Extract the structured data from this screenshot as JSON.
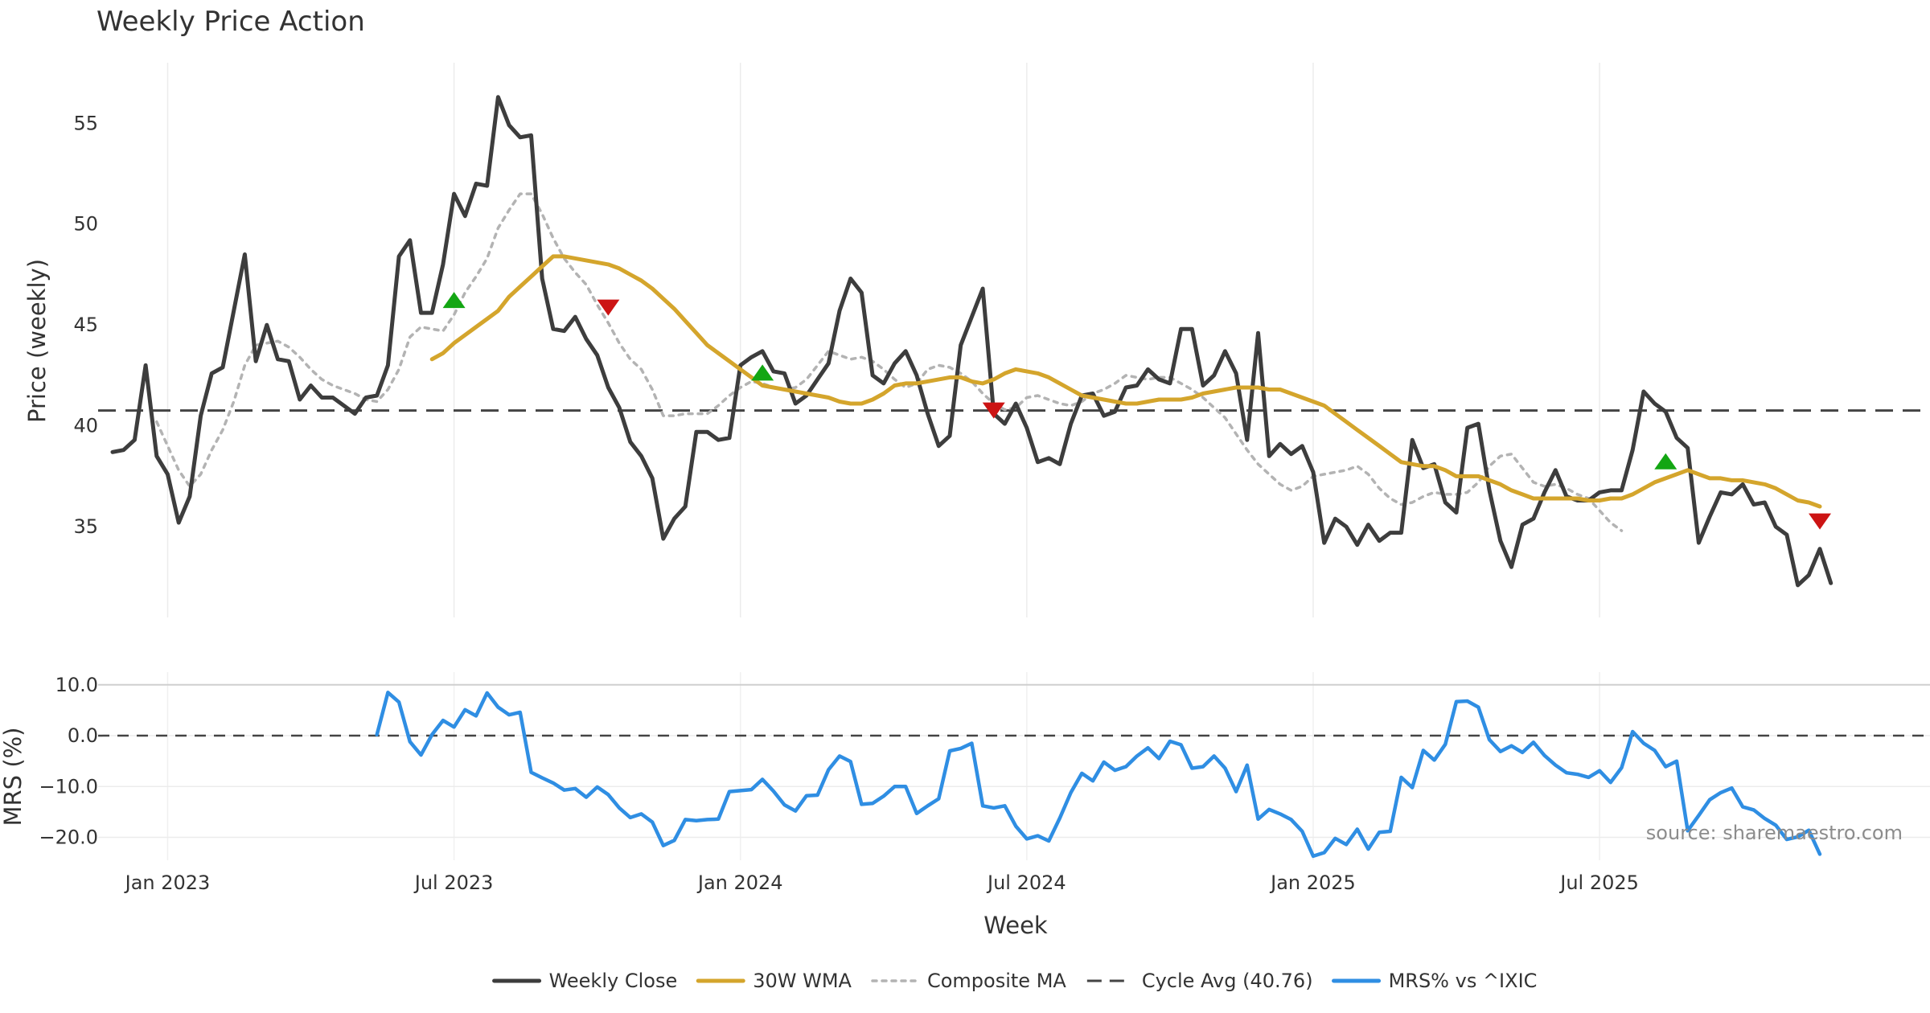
{
  "chart_data": {
    "type": "line",
    "title": "Weekly Price Action",
    "xlabel": "Week",
    "x_ticks": [
      {
        "label": "Jan 2023",
        "week": 5
      },
      {
        "label": "Jul 2023",
        "week": 31
      },
      {
        "label": "Jan 2024",
        "week": 57
      },
      {
        "label": "Jul 2024",
        "week": 83
      },
      {
        "label": "Jan 2025",
        "week": 109
      },
      {
        "label": "Jul 2025",
        "week": 135
      }
    ],
    "price_panel": {
      "ylabel": "Price (weekly)",
      "ylim": [
        30.5,
        58
      ],
      "yticks": [
        35,
        40,
        45,
        50,
        55
      ],
      "series": [
        {
          "name": "Weekly Close",
          "color": "#3d3d3d",
          "style": "solid",
          "values": [
            38.7,
            38.8,
            39.3,
            43.0,
            38.5,
            37.6,
            35.2,
            36.5,
            40.5,
            42.6,
            42.9,
            45.7,
            48.5,
            43.2,
            45.0,
            43.3,
            43.2,
            41.3,
            42.0,
            41.4,
            41.4,
            41.0,
            40.6,
            41.4,
            41.5,
            43.0,
            48.4,
            49.2,
            45.6,
            45.6,
            48.0,
            51.5,
            50.4,
            52.0,
            51.9,
            56.3,
            54.9,
            54.3,
            54.4,
            47.3,
            44.8,
            44.7,
            45.4,
            44.3,
            43.5,
            41.9,
            40.9,
            39.2,
            38.5,
            37.4,
            34.4,
            35.4,
            36.0,
            39.7,
            39.7,
            39.3,
            39.4,
            43.0,
            43.4,
            43.7,
            42.7,
            42.6,
            41.1,
            41.5,
            42.3,
            43.1,
            45.7,
            47.3,
            46.6,
            42.5,
            42.1,
            43.1,
            43.7,
            42.5,
            40.6,
            39.0,
            39.5,
            44.0,
            45.4,
            46.8,
            40.6,
            40.1,
            41.1,
            39.9,
            38.2,
            38.4,
            38.1,
            40.1,
            41.5,
            41.6,
            40.5,
            40.7,
            41.9,
            42.0,
            42.8,
            42.3,
            42.1,
            44.8,
            44.8,
            42.0,
            42.5,
            43.7,
            42.6,
            39.3,
            44.6,
            38.5,
            39.1,
            38.6,
            39.0,
            37.7,
            34.2,
            35.4,
            35.0,
            34.1,
            35.1,
            34.3,
            34.7,
            34.7,
            39.3,
            37.9,
            38.1,
            36.2,
            35.7,
            39.9,
            40.1,
            36.8,
            34.3,
            33.0,
            35.1,
            35.4,
            36.7,
            37.8,
            36.5,
            36.3,
            36.3,
            36.7,
            36.8,
            36.8,
            38.8,
            41.7,
            41.1,
            40.7,
            39.4,
            38.9,
            34.2,
            35.5,
            36.7,
            36.6,
            37.1,
            36.1,
            36.2,
            35.0,
            34.6,
            32.1,
            32.6,
            33.9,
            32.2
          ]
        },
        {
          "name": "30W WMA",
          "color": "#d4a52c",
          "style": "solid",
          "start_week": 29,
          "values": [
            43.3,
            43.6,
            44.1,
            44.5,
            44.9,
            45.3,
            45.7,
            46.4,
            46.9,
            47.4,
            47.9,
            48.4,
            48.4,
            48.3,
            48.2,
            48.1,
            48.0,
            47.8,
            47.5,
            47.2,
            46.8,
            46.3,
            45.8,
            45.2,
            44.6,
            44.0,
            43.6,
            43.2,
            42.8,
            42.4,
            42.0,
            41.9,
            41.8,
            41.7,
            41.6,
            41.5,
            41.4,
            41.2,
            41.1,
            41.1,
            41.3,
            41.6,
            42.0,
            42.1,
            42.1,
            42.2,
            42.3,
            42.4,
            42.4,
            42.2,
            42.1,
            42.3,
            42.6,
            42.8,
            42.7,
            42.6,
            42.4,
            42.1,
            41.8,
            41.5,
            41.4,
            41.3,
            41.2,
            41.1,
            41.1,
            41.2,
            41.3,
            41.3,
            41.3,
            41.4,
            41.6,
            41.7,
            41.8,
            41.9,
            41.9,
            41.9,
            41.8,
            41.8,
            41.6,
            41.4,
            41.2,
            41.0,
            40.6,
            40.2,
            39.8,
            39.4,
            39.0,
            38.6,
            38.2,
            38.1,
            38.0,
            38.0,
            37.8,
            37.5,
            37.5,
            37.5,
            37.3,
            37.1,
            36.8,
            36.6,
            36.4,
            36.4,
            36.4,
            36.4,
            36.4,
            36.3,
            36.3,
            36.4,
            36.4,
            36.6,
            36.9,
            37.2,
            37.4,
            37.6,
            37.8,
            37.6,
            37.4,
            37.4,
            37.3,
            37.3,
            37.2,
            37.1,
            36.9,
            36.6,
            36.3,
            36.2,
            36.0
          ]
        },
        {
          "name": "Composite MA",
          "color": "#b3b3b3",
          "style": "dotted",
          "start_week": 4,
          "values": [
            40.2,
            39.0,
            37.8,
            37.0,
            37.6,
            38.8,
            39.8,
            41.2,
            43.0,
            44.0,
            44.1,
            44.2,
            43.9,
            43.4,
            42.8,
            42.3,
            42.0,
            41.8,
            41.6,
            41.3,
            41.2,
            41.8,
            42.8,
            44.4,
            44.9,
            44.8,
            44.7,
            45.5,
            46.6,
            47.4,
            48.3,
            49.8,
            50.7,
            51.5,
            51.5,
            50.5,
            49.3,
            48.3,
            47.6,
            47.0,
            46.0,
            45.1,
            44.1,
            43.3,
            42.8,
            41.8,
            40.5,
            40.5,
            40.6,
            40.6,
            40.6,
            41.0,
            41.5,
            41.9,
            42.2,
            42.1,
            41.9,
            41.8,
            41.9,
            42.3,
            43.0,
            43.7,
            43.5,
            43.3,
            43.4,
            43.2,
            42.8,
            42.3,
            41.9,
            42.1,
            42.8,
            43.0,
            42.9,
            42.6,
            42.2,
            41.6,
            41.1,
            40.8,
            40.9,
            41.4,
            41.5,
            41.3,
            41.1,
            41.0,
            41.2,
            41.6,
            41.8,
            42.1,
            42.5,
            42.4,
            42.3,
            42.4,
            42.4,
            42.1,
            41.8,
            41.4,
            40.9,
            40.4,
            39.6,
            38.8,
            38.1,
            37.6,
            37.1,
            36.8,
            37.0,
            37.5,
            37.6,
            37.7,
            37.8,
            38.0,
            37.6,
            36.9,
            36.4,
            36.1,
            36.2,
            36.5,
            36.7,
            36.6,
            36.6,
            36.7,
            37.2,
            38.0,
            38.5,
            38.6,
            37.9,
            37.2,
            37.0,
            37.1,
            36.9,
            36.6,
            36.4,
            35.8,
            35.2,
            34.8
          ]
        },
        {
          "name": "Cycle Avg (40.76)",
          "color": "#444444",
          "style": "dashed",
          "value": 40.76
        }
      ],
      "buy_signals": [
        {
          "week": 31,
          "price": 46.2
        },
        {
          "week": 59,
          "price": 42.6
        },
        {
          "week": 141,
          "price": 38.2
        }
      ],
      "sell_signals": [
        {
          "week": 45,
          "price": 45.9
        },
        {
          "week": 80,
          "price": 40.8
        },
        {
          "week": 155,
          "price": 35.3
        }
      ]
    },
    "mrs_panel": {
      "ylabel": "MRS (%)",
      "ylim": [
        -24.5,
        12.5
      ],
      "yticks": [
        10.0,
        0.0,
        -10.0,
        -20.0
      ],
      "ytick_labels": [
        "10.0",
        "0.0",
        "−10.0",
        "−20.0"
      ],
      "zero_line": 0,
      "series": [
        {
          "name": "MRS% vs ^IXIC",
          "color": "#2f8ee3",
          "start_week": 24,
          "values": [
            0.2,
            8.5,
            6.6,
            -1.2,
            -3.8,
            0.2,
            3.0,
            1.7,
            5.1,
            3.9,
            8.4,
            5.6,
            4.1,
            4.6,
            -7.2,
            -8.3,
            -9.3,
            -10.7,
            -10.4,
            -12.1,
            -10.1,
            -11.6,
            -14.2,
            -16.1,
            -15.4,
            -17.0,
            -21.6,
            -20.6,
            -16.5,
            -16.7,
            -16.5,
            -16.4,
            -11.0,
            -10.8,
            -10.6,
            -8.6,
            -10.9,
            -13.6,
            -14.8,
            -11.8,
            -11.7,
            -6.7,
            -4.0,
            -5.1,
            -13.5,
            -13.3,
            -11.9,
            -10.0,
            -10.0,
            -15.3,
            -13.8,
            -12.4,
            -3.0,
            -2.5,
            -1.5,
            -13.8,
            -14.2,
            -13.8,
            -17.8,
            -20.3,
            -19.7,
            -20.7,
            -16.2,
            -11.2,
            -7.4,
            -8.9,
            -5.2,
            -6.8,
            -6.1,
            -4.0,
            -2.4,
            -4.5,
            -1.1,
            -1.8,
            -6.4,
            -6.1,
            -4.0,
            -6.4,
            -11.0,
            -5.8,
            -16.4,
            -14.5,
            -15.4,
            -16.5,
            -18.8,
            -23.7,
            -23.0,
            -20.2,
            -21.4,
            -18.4,
            -22.3,
            -19.0,
            -18.8,
            -8.2,
            -10.2,
            -2.9,
            -4.8,
            -1.7,
            6.7,
            6.8,
            5.6,
            -0.8,
            -3.1,
            -2.0,
            -3.3,
            -1.3,
            -3.9,
            -5.8,
            -7.3,
            -7.6,
            -8.2,
            -6.9,
            -9.2,
            -6.3,
            0.8,
            -1.5,
            -2.9,
            -6.1,
            -5.0,
            -18.7,
            -15.7,
            -12.6,
            -11.2,
            -10.3,
            -14.0,
            -14.6,
            -16.3,
            -17.6,
            -20.4,
            -19.9,
            -18.6,
            -23.3
          ]
        }
      ],
      "annotation": "source: sharemaestro.com"
    },
    "legend": {
      "position": "bottom-center",
      "entries": [
        "Weekly Close",
        "30W WMA",
        "Composite MA",
        "Cycle Avg (40.76)",
        "MRS% vs ^IXIC"
      ]
    },
    "grid": true
  }
}
